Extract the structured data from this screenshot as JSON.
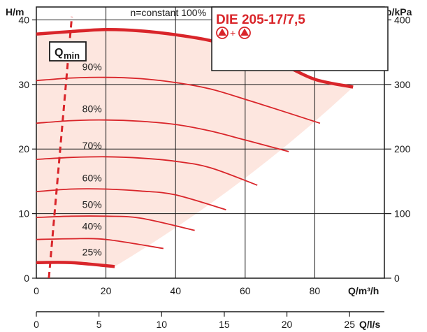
{
  "chart_data": {
    "type": "line",
    "title": "DIE 205-17/7,5",
    "symbol_plus": "+",
    "left_axis": {
      "label": "H/m",
      "ticks": [
        0,
        10,
        20,
        30,
        40
      ],
      "range": [
        0,
        42
      ]
    },
    "right_axis": {
      "label": "p/kPa",
      "ticks": [
        0,
        100,
        200,
        300,
        400
      ]
    },
    "x_axis": {
      "label": "Q/m³/h",
      "ticks": [
        0,
        20,
        40,
        60,
        80
      ],
      "range": [
        0,
        100
      ]
    },
    "x_axis2": {
      "label": "Q/l/s",
      "ticks": [
        0,
        5,
        10,
        15,
        20,
        25
      ]
    },
    "qmin_label": "Q",
    "qmin_sub": "min",
    "qmin_line": [
      [
        3.6,
        0
      ],
      [
        10.2,
        40.5
      ]
    ],
    "grid": true,
    "series": [
      {
        "name": "n=constant 100%",
        "x": [
          0,
          10,
          20,
          30,
          40,
          50,
          60,
          70,
          80,
          91
        ],
        "y": [
          37.8,
          38.2,
          38.5,
          38.3,
          37.7,
          36.8,
          35.3,
          33.3,
          30.8,
          29.6
        ]
      },
      {
        "name": "90%",
        "x": [
          0,
          10,
          20,
          30,
          40,
          50,
          60,
          70,
          81.5
        ],
        "y": [
          30.6,
          31.0,
          31.1,
          30.9,
          30.3,
          29.3,
          27.7,
          26.0,
          24.0
        ]
      },
      {
        "name": "80%",
        "x": [
          0,
          10,
          20,
          30,
          40,
          50,
          60,
          72.5
        ],
        "y": [
          24.0,
          24.4,
          24.5,
          24.3,
          23.8,
          22.8,
          21.4,
          19.6
        ]
      },
      {
        "name": "70%",
        "x": [
          0,
          10,
          20,
          30,
          40,
          50,
          63.5
        ],
        "y": [
          18.4,
          18.7,
          18.8,
          18.6,
          18.1,
          17.1,
          14.4
        ]
      },
      {
        "name": "60%",
        "x": [
          0,
          10,
          20,
          30,
          40,
          54.5
        ],
        "y": [
          13.4,
          13.8,
          13.8,
          13.5,
          12.9,
          10.6
        ]
      },
      {
        "name": "50%",
        "x": [
          0,
          10,
          20,
          30,
          45.5
        ],
        "y": [
          9.4,
          9.6,
          9.6,
          9.3,
          7.4
        ]
      },
      {
        "name": "40%",
        "x": [
          0,
          10,
          20,
          36.5
        ],
        "y": [
          6.0,
          6.1,
          6.0,
          4.6
        ]
      },
      {
        "name": "25%",
        "x": [
          0,
          10,
          22.5
        ],
        "y": [
          2.4,
          2.4,
          1.8
        ]
      }
    ],
    "series_label_pos": [
      {
        "x": 27,
        "y": 40.6
      },
      {
        "x": 16,
        "y": 32.2
      },
      {
        "x": 16,
        "y": 25.7
      },
      {
        "x": 16,
        "y": 20.0
      },
      {
        "x": 16,
        "y": 15.0
      },
      {
        "x": 16,
        "y": 10.9
      },
      {
        "x": 16,
        "y": 7.5
      },
      {
        "x": 16,
        "y": 3.5
      }
    ],
    "operating_range_boundary": [
      [
        3.6,
        37.8
      ],
      [
        91,
        29.6
      ],
      [
        22.5,
        1.8
      ],
      [
        3.6,
        2.4
      ]
    ],
    "colors": {
      "curve": "#d9252a",
      "fill": "#fde6df",
      "grid": "#1a1a1a"
    }
  }
}
